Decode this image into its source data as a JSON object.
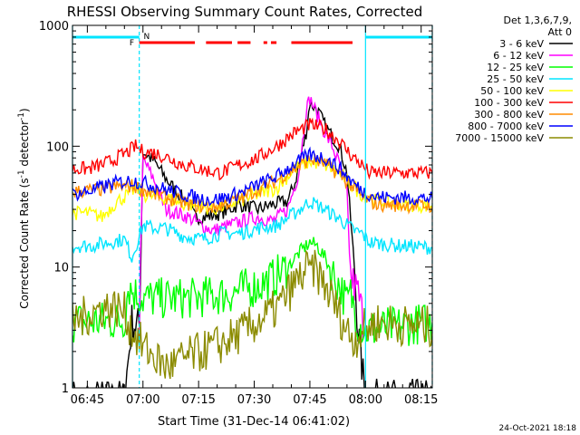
{
  "chart_data": {
    "type": "line",
    "title": "RHESSI Observing Summary Count Rates, Corrected",
    "xlabel": "Start Time (31-Dec-14 06:41:02)",
    "ylabel": "Corrected Count Rate (s^-1 detector^-1)",
    "ylabel_parts": {
      "main": "Corrected Count Rate (s",
      "sup1": "-1",
      "mid": " detector",
      "sup2": "-1",
      "end": ")"
    },
    "yscale": "log",
    "ylim": [
      1,
      1000
    ],
    "xlim_minutes": [
      0,
      97
    ],
    "x_tick_labels": [
      "06:45",
      "07:00",
      "07:15",
      "07:30",
      "07:45",
      "08:00",
      "08:15"
    ],
    "x_tick_minutes": [
      4,
      19,
      34,
      49,
      64,
      79,
      94
    ],
    "y_tick_labels": [
      "1",
      "10",
      "100",
      "1000"
    ],
    "y_tick_values": [
      1,
      10,
      100,
      1000
    ],
    "grid": false,
    "legend_header": [
      "Det 1,3,6,7,9,",
      "Att 0"
    ],
    "legend_placement": "right",
    "flags": [
      {
        "label": "F",
        "color": "#ff0000"
      },
      {
        "label": "N",
        "color": "#00e5ff"
      }
    ],
    "series": [
      {
        "name": "3 - 6 keV",
        "color": "#000000",
        "points": [
          [
            0,
            0.8
          ],
          [
            14,
            0.8
          ],
          [
            16,
            3.5
          ],
          [
            18,
            3.2
          ],
          [
            19,
            90
          ],
          [
            22,
            75
          ],
          [
            25,
            55
          ],
          [
            28,
            42
          ],
          [
            31,
            34
          ],
          [
            33,
            26
          ],
          [
            36,
            26
          ],
          [
            40,
            28
          ],
          [
            45,
            33
          ],
          [
            50,
            30
          ],
          [
            54,
            33
          ],
          [
            58,
            35
          ],
          [
            60,
            50
          ],
          [
            63,
            130
          ],
          [
            64,
            230
          ],
          [
            66,
            200
          ],
          [
            68,
            150
          ],
          [
            70,
            120
          ],
          [
            72,
            100
          ],
          [
            74,
            60
          ],
          [
            76,
            10
          ],
          [
            77,
            3
          ],
          [
            79,
            0.8
          ],
          [
            97,
            0.8
          ]
        ]
      },
      {
        "name": "6 - 12 keV",
        "color": "#ff00ff",
        "points": [
          [
            18,
            3.2
          ],
          [
            19,
            80
          ],
          [
            21,
            60
          ],
          [
            23,
            45
          ],
          [
            25,
            30
          ],
          [
            28,
            28
          ],
          [
            31,
            26
          ],
          [
            35,
            22
          ],
          [
            38,
            20
          ],
          [
            42,
            22
          ],
          [
            46,
            24
          ],
          [
            50,
            26
          ],
          [
            54,
            24
          ],
          [
            58,
            30
          ],
          [
            61,
            60
          ],
          [
            63,
            200
          ],
          [
            64,
            250
          ],
          [
            66,
            180
          ],
          [
            68,
            130
          ],
          [
            70,
            100
          ],
          [
            72,
            70
          ],
          [
            74,
            40
          ],
          [
            75,
            8
          ],
          [
            77,
            6
          ],
          [
            79,
            3
          ]
        ]
      },
      {
        "name": "12 - 25 keV",
        "color": "#00ff00",
        "points": [
          [
            0,
            3.5
          ],
          [
            14,
            3.6
          ],
          [
            15,
            7
          ],
          [
            17,
            6
          ],
          [
            19,
            5.5
          ],
          [
            25,
            5.5
          ],
          [
            32,
            5.5
          ],
          [
            38,
            5.8
          ],
          [
            42,
            6
          ],
          [
            46,
            6.5
          ],
          [
            50,
            7
          ],
          [
            54,
            8
          ],
          [
            58,
            10
          ],
          [
            61,
            13
          ],
          [
            64,
            16
          ],
          [
            66,
            15
          ],
          [
            68,
            12
          ],
          [
            70,
            9
          ],
          [
            72,
            7
          ],
          [
            74,
            5
          ],
          [
            75,
            6
          ],
          [
            77,
            3.5
          ],
          [
            79,
            3
          ],
          [
            97,
            3.5
          ]
        ]
      },
      {
        "name": "25 - 50 keV",
        "color": "#00e5ff",
        "points": [
          [
            0,
            15
          ],
          [
            5,
            15
          ],
          [
            10,
            16
          ],
          [
            14,
            17
          ],
          [
            16,
            12
          ],
          [
            19,
            22
          ],
          [
            22,
            21
          ],
          [
            25,
            21
          ],
          [
            30,
            18
          ],
          [
            35,
            17
          ],
          [
            40,
            19
          ],
          [
            45,
            19
          ],
          [
            50,
            21
          ],
          [
            55,
            22
          ],
          [
            60,
            28
          ],
          [
            64,
            35
          ],
          [
            68,
            30
          ],
          [
            72,
            25
          ],
          [
            76,
            20
          ],
          [
            78,
            19
          ],
          [
            80,
            16
          ],
          [
            88,
            15
          ],
          [
            97,
            14.5
          ]
        ]
      },
      {
        "name": "50 - 100 keV",
        "color": "#ffff00",
        "points": [
          [
            0,
            28
          ],
          [
            4,
            28
          ],
          [
            8,
            26
          ],
          [
            12,
            35
          ],
          [
            15,
            40
          ],
          [
            17,
            45
          ],
          [
            19,
            40
          ],
          [
            22,
            38
          ],
          [
            26,
            37
          ],
          [
            30,
            33
          ],
          [
            34,
            32
          ],
          [
            38,
            30
          ],
          [
            42,
            33
          ],
          [
            46,
            36
          ],
          [
            50,
            40
          ],
          [
            55,
            45
          ],
          [
            60,
            65
          ],
          [
            64,
            75
          ],
          [
            68,
            70
          ],
          [
            72,
            60
          ],
          [
            75,
            48
          ],
          [
            78,
            40
          ],
          [
            82,
            35
          ],
          [
            90,
            33
          ],
          [
            97,
            32
          ]
        ]
      },
      {
        "name": "100 - 300 keV",
        "color": "#ff0000",
        "points": [
          [
            0,
            65
          ],
          [
            4,
            65
          ],
          [
            8,
            70
          ],
          [
            12,
            80
          ],
          [
            15,
            90
          ],
          [
            17,
            100
          ],
          [
            19,
            90
          ],
          [
            22,
            88
          ],
          [
            25,
            82
          ],
          [
            30,
            70
          ],
          [
            35,
            64
          ],
          [
            40,
            60
          ],
          [
            45,
            70
          ],
          [
            50,
            80
          ],
          [
            55,
            100
          ],
          [
            60,
            130
          ],
          [
            64,
            150
          ],
          [
            68,
            140
          ],
          [
            72,
            110
          ],
          [
            75,
            85
          ],
          [
            78,
            70
          ],
          [
            80,
            60
          ],
          [
            97,
            60
          ]
        ]
      },
      {
        "name": "300 - 800 keV",
        "color": "#ff8c00",
        "points": [
          [
            0,
            42
          ],
          [
            4,
            43
          ],
          [
            8,
            44
          ],
          [
            12,
            46
          ],
          [
            16,
            47
          ],
          [
            19,
            44
          ],
          [
            22,
            40
          ],
          [
            26,
            37
          ],
          [
            30,
            34
          ],
          [
            34,
            32
          ],
          [
            38,
            31
          ],
          [
            42,
            34
          ],
          [
            46,
            38
          ],
          [
            50,
            44
          ],
          [
            55,
            52
          ],
          [
            60,
            66
          ],
          [
            64,
            78
          ],
          [
            68,
            72
          ],
          [
            72,
            58
          ],
          [
            75,
            48
          ],
          [
            78,
            38
          ],
          [
            82,
            33
          ],
          [
            97,
            32
          ]
        ]
      },
      {
        "name": "800 - 7000 keV",
        "color": "#0000ff",
        "points": [
          [
            0,
            40
          ],
          [
            4,
            42
          ],
          [
            8,
            46
          ],
          [
            12,
            50
          ],
          [
            16,
            52
          ],
          [
            19,
            50
          ],
          [
            22,
            47
          ],
          [
            26,
            43
          ],
          [
            30,
            40
          ],
          [
            34,
            37
          ],
          [
            38,
            36
          ],
          [
            42,
            38
          ],
          [
            46,
            42
          ],
          [
            50,
            48
          ],
          [
            55,
            56
          ],
          [
            60,
            72
          ],
          [
            64,
            85
          ],
          [
            68,
            80
          ],
          [
            72,
            66
          ],
          [
            75,
            52
          ],
          [
            78,
            43
          ],
          [
            82,
            38
          ],
          [
            97,
            37
          ]
        ]
      },
      {
        "name": "7000 - 15000 keV",
        "color": "#8b8b00",
        "points": [
          [
            0,
            3.5
          ],
          [
            4,
            4
          ],
          [
            8,
            4.6
          ],
          [
            12,
            4.6
          ],
          [
            14,
            4.2
          ],
          [
            16,
            3
          ],
          [
            19,
            2.2
          ],
          [
            22,
            1.8
          ],
          [
            25,
            1.5
          ],
          [
            28,
            1.6
          ],
          [
            31,
            1.8
          ],
          [
            35,
            2
          ],
          [
            40,
            2.3
          ],
          [
            45,
            2.8
          ],
          [
            50,
            3.5
          ],
          [
            55,
            4.5
          ],
          [
            58,
            6
          ],
          [
            61,
            8
          ],
          [
            64,
            10
          ],
          [
            66,
            9
          ],
          [
            68,
            7
          ],
          [
            70,
            5.5
          ],
          [
            72,
            4
          ],
          [
            74,
            3
          ],
          [
            76,
            2.5
          ],
          [
            78,
            3
          ],
          [
            82,
            3.5
          ],
          [
            90,
            3.3
          ],
          [
            97,
            3.2
          ]
        ]
      }
    ],
    "attenuator_lines": [
      {
        "color": "#00e5ff",
        "style": "solid",
        "minute": 0
      },
      {
        "color": "#00e5ff",
        "style": "dashed",
        "minute": 18
      },
      {
        "color": "#00e5ff",
        "style": "solid",
        "minute": 79
      },
      {
        "color": "#00e5ff",
        "style": "dashed",
        "minute": 97
      }
    ],
    "footer_date": "24-Oct-2021 18:18"
  }
}
